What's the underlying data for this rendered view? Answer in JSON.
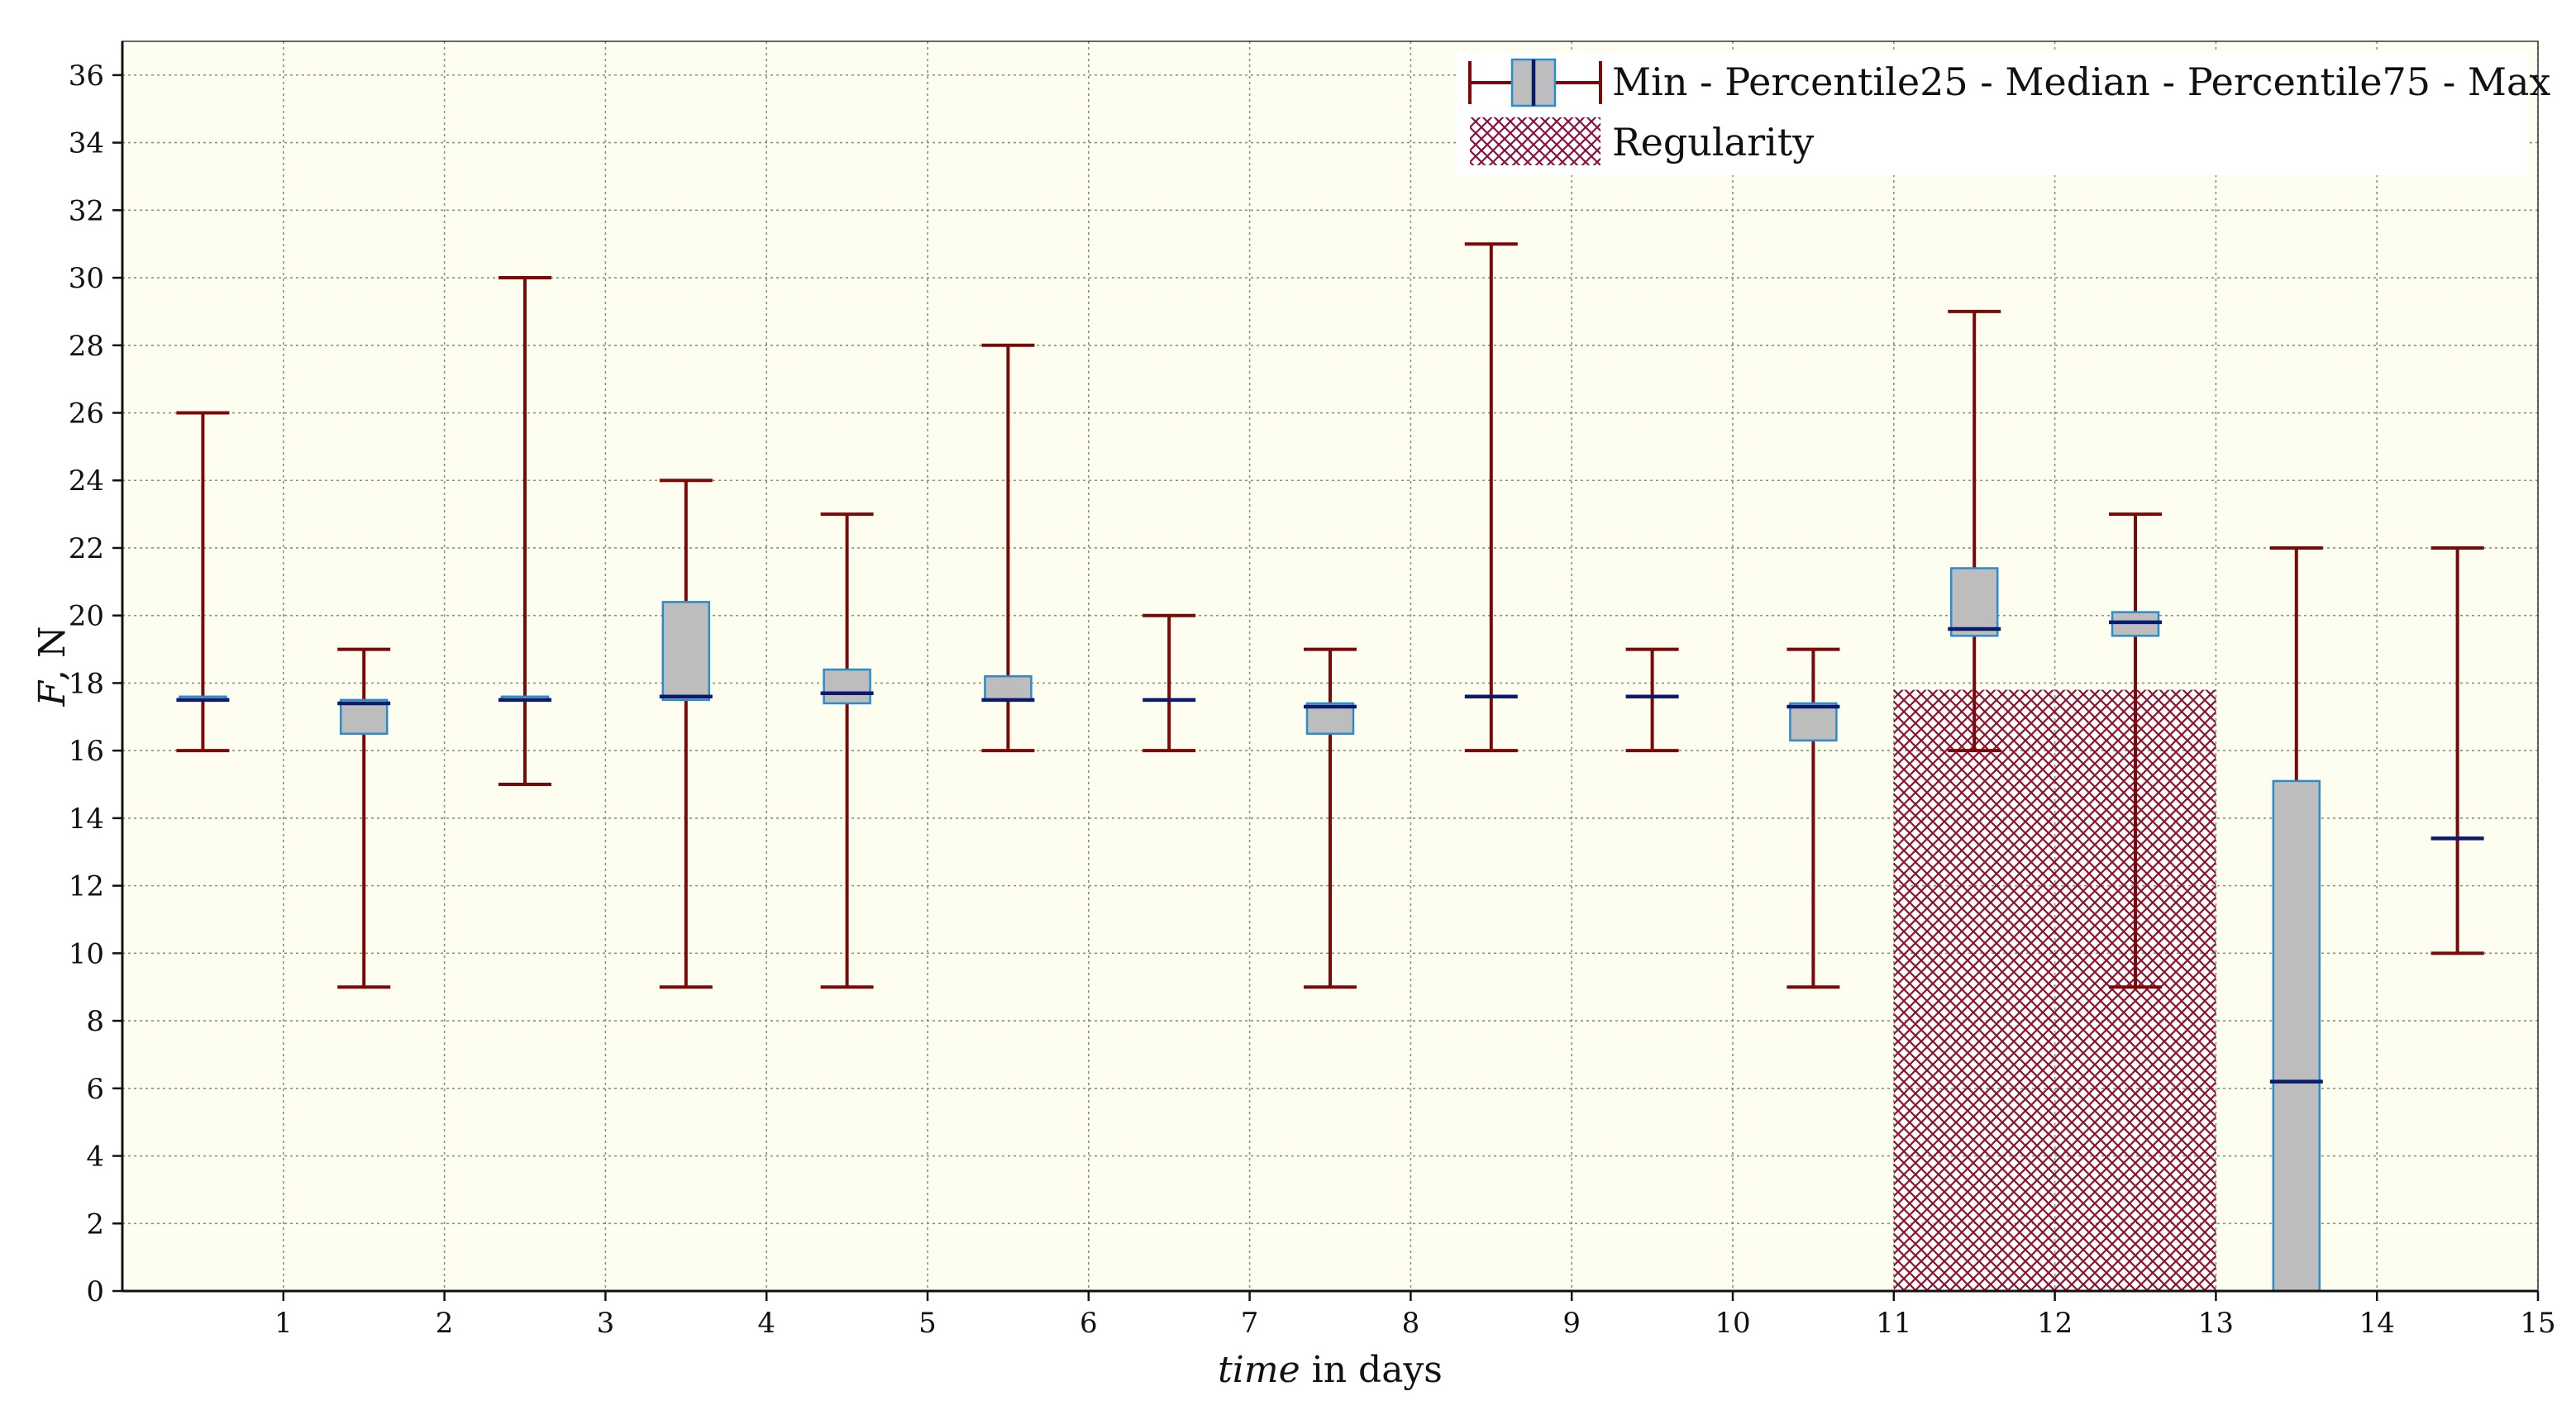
{
  "chart_data": {
    "type": "box",
    "title": "",
    "xlabel_italic": "time",
    "xlabel_rest": " in days",
    "ylabel_italic": "F",
    "ylabel_rest": ", N",
    "xlim": [
      0,
      15
    ],
    "ylim": [
      0,
      37
    ],
    "xticks": [
      1,
      2,
      3,
      4,
      5,
      6,
      7,
      8,
      9,
      10,
      11,
      12,
      13,
      14,
      15
    ],
    "yticks": [
      0,
      2,
      4,
      6,
      8,
      10,
      12,
      14,
      16,
      18,
      20,
      22,
      24,
      26,
      28,
      30,
      32,
      34,
      36
    ],
    "grid": true,
    "legend_position": "top-right",
    "legend": {
      "box_label": "Min - Percentile25 - Median - Percentile75 - Max",
      "region_label": "Regularity"
    },
    "colors": {
      "plot_background": "#fefef0",
      "whisker": "#7a0a0a",
      "median": "#0a1a6e",
      "box_fill": "#bdbdbd",
      "box_stroke": "#2a8cc8",
      "hatch": "#8a1040",
      "grid": "#7a9a7a"
    },
    "boxes": [
      {
        "day": 0.5,
        "min": 16,
        "q1": 17.5,
        "median": 17.5,
        "q3": 17.6,
        "max": 26
      },
      {
        "day": 1.5,
        "min": 9,
        "q1": 16.5,
        "median": 17.4,
        "q3": 17.5,
        "max": 19
      },
      {
        "day": 2.5,
        "min": 15,
        "q1": 17.5,
        "median": 17.5,
        "q3": 17.6,
        "max": 30
      },
      {
        "day": 3.5,
        "min": 9,
        "q1": 17.5,
        "median": 17.6,
        "q3": 20.4,
        "max": 24
      },
      {
        "day": 4.5,
        "min": 9,
        "q1": 17.4,
        "median": 17.7,
        "q3": 18.4,
        "max": 23
      },
      {
        "day": 5.5,
        "min": 16,
        "q1": 17.5,
        "median": 17.5,
        "q3": 18.2,
        "max": 28
      },
      {
        "day": 6.5,
        "min": 16,
        "q1": 17.5,
        "median": 17.5,
        "q3": 17.5,
        "max": 20
      },
      {
        "day": 7.5,
        "min": 9,
        "q1": 16.5,
        "median": 17.3,
        "q3": 17.4,
        "max": 19
      },
      {
        "day": 8.5,
        "min": 16,
        "q1": 17.6,
        "median": 17.6,
        "q3": 17.6,
        "max": 31
      },
      {
        "day": 9.5,
        "min": 16,
        "q1": 17.6,
        "median": 17.6,
        "q3": 17.6,
        "max": 19
      },
      {
        "day": 10.5,
        "min": 9,
        "q1": 16.3,
        "median": 17.3,
        "q3": 17.4,
        "max": 19
      },
      {
        "day": 11.5,
        "min": 16,
        "q1": 19.4,
        "median": 19.6,
        "q3": 21.4,
        "max": 29
      },
      {
        "day": 12.5,
        "min": 9,
        "q1": 19.4,
        "median": 19.8,
        "q3": 20.1,
        "max": 23
      },
      {
        "day": 13.5,
        "min": 0,
        "q1": 0,
        "median": 6.2,
        "q3": 15.1,
        "max": 22
      },
      {
        "day": 14.5,
        "min": 10,
        "q1": 13.4,
        "median": 13.4,
        "q3": 13.4,
        "max": 22
      }
    ],
    "regularity_region": {
      "x0": 11,
      "x1": 13,
      "y0": 0,
      "y1": 17.8
    }
  }
}
